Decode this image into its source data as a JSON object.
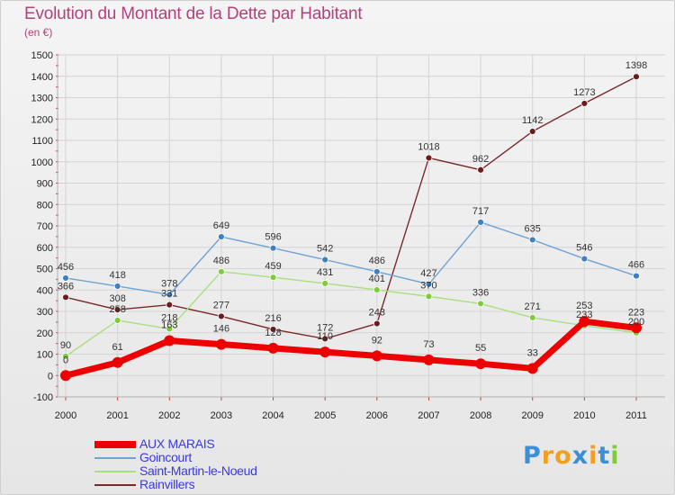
{
  "header": {
    "title": "Evolution du Montant de la Dette par Habitant",
    "subtitle": "(en €)"
  },
  "logo": "Proxiti",
  "chart_data": {
    "type": "line",
    "title": "Evolution du Montant de la Dette par Habitant",
    "subtitle": "(en €)",
    "xlabel": "",
    "ylabel": "",
    "categories": [
      "2000",
      "2001",
      "2002",
      "2003",
      "2004",
      "2005",
      "2006",
      "2007",
      "2008",
      "2009",
      "2010",
      "2011"
    ],
    "ylim": [
      -100,
      1500
    ],
    "yticks": [
      -100,
      0,
      100,
      200,
      300,
      400,
      500,
      600,
      700,
      800,
      900,
      1000,
      1100,
      1200,
      1300,
      1400,
      1500
    ],
    "grid": true,
    "legend_position": "bottom-left",
    "series": [
      {
        "name": "AUX MARAIS",
        "color": "#ee0000",
        "point_color": "#ee0000",
        "values": [
          0,
          61,
          163,
          146,
          128,
          110,
          92,
          73,
          55,
          33,
          253,
          223
        ]
      },
      {
        "name": "Goincourt",
        "color": "#6ea3d6",
        "point_color": "#3f7fc3",
        "values": [
          456,
          418,
          378,
          649,
          596,
          542,
          486,
          427,
          717,
          635,
          546,
          466
        ]
      },
      {
        "name": "Saint-Martin-le-Noeud",
        "color": "#a9e07c",
        "point_color": "#7fcc3a",
        "values": [
          90,
          258,
          218,
          486,
          459,
          431,
          401,
          370,
          336,
          271,
          233,
          200
        ]
      },
      {
        "name": "Rainvillers",
        "color": "#7a2a2a",
        "point_color": "#6b1c1c",
        "values": [
          366,
          308,
          331,
          277,
          216,
          172,
          243,
          1018,
          962,
          1142,
          1273,
          1398
        ]
      }
    ]
  }
}
